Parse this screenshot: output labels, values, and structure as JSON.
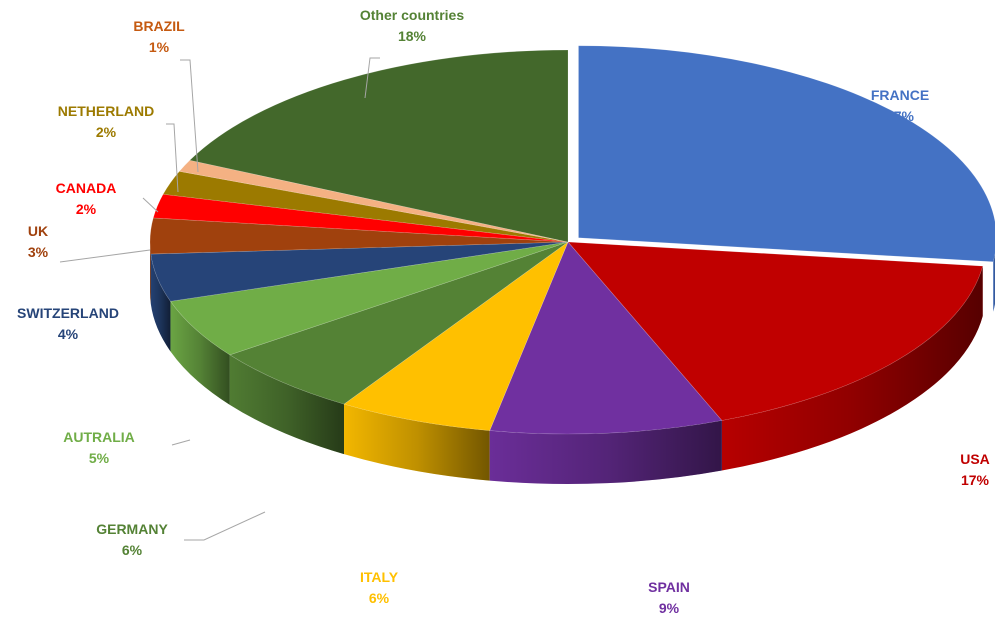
{
  "chart_data": {
    "type": "pie",
    "style": "3d-exploded",
    "title": "",
    "slices": [
      {
        "label": "FRANCE",
        "value": 27,
        "pct": "27%",
        "color": "#4472c4"
      },
      {
        "label": "USA",
        "value": 17,
        "pct": "17%",
        "color": "#c00000"
      },
      {
        "label": "SPAIN",
        "value": 9,
        "pct": "9%",
        "color": "#7030a0"
      },
      {
        "label": "ITALY",
        "value": 6,
        "pct": "6%",
        "color": "#ffc000"
      },
      {
        "label": "GERMANY",
        "value": 6,
        "pct": "6%",
        "color": "#548235"
      },
      {
        "label": "AUTRALIA",
        "value": 5,
        "pct": "5%",
        "color": "#70ad47"
      },
      {
        "label": "SWITZERLAND",
        "value": 4,
        "pct": "4%",
        "color": "#264478"
      },
      {
        "label": "UK",
        "value": 3,
        "pct": "3%",
        "color": "#a0410d"
      },
      {
        "label": "CANADA",
        "value": 2,
        "pct": "2%",
        "color": "#ff0000"
      },
      {
        "label": "NETHERLAND",
        "value": 2,
        "pct": "2%",
        "color": "#9c7a00"
      },
      {
        "label": "BRAZIL",
        "value": 1,
        "pct": "1%",
        "color": "#f4b183"
      },
      {
        "label": "Other countries",
        "value": 18,
        "pct": "18%",
        "color": "#43682b"
      }
    ],
    "label_colors": {
      "FRANCE": "#4472c4",
      "USA": "#c00000",
      "SPAIN": "#7030a0",
      "ITALY": "#ffc000",
      "GERMANY": "#548235",
      "AUTRALIA": "#70ad47",
      "SWITZERLAND": "#264478",
      "UK": "#a0410d",
      "CANADA": "#ff0000",
      "NETHERLAND": "#9c7a00",
      "BRAZIL": "#c55a11",
      "Other countries": "#548235"
    }
  }
}
